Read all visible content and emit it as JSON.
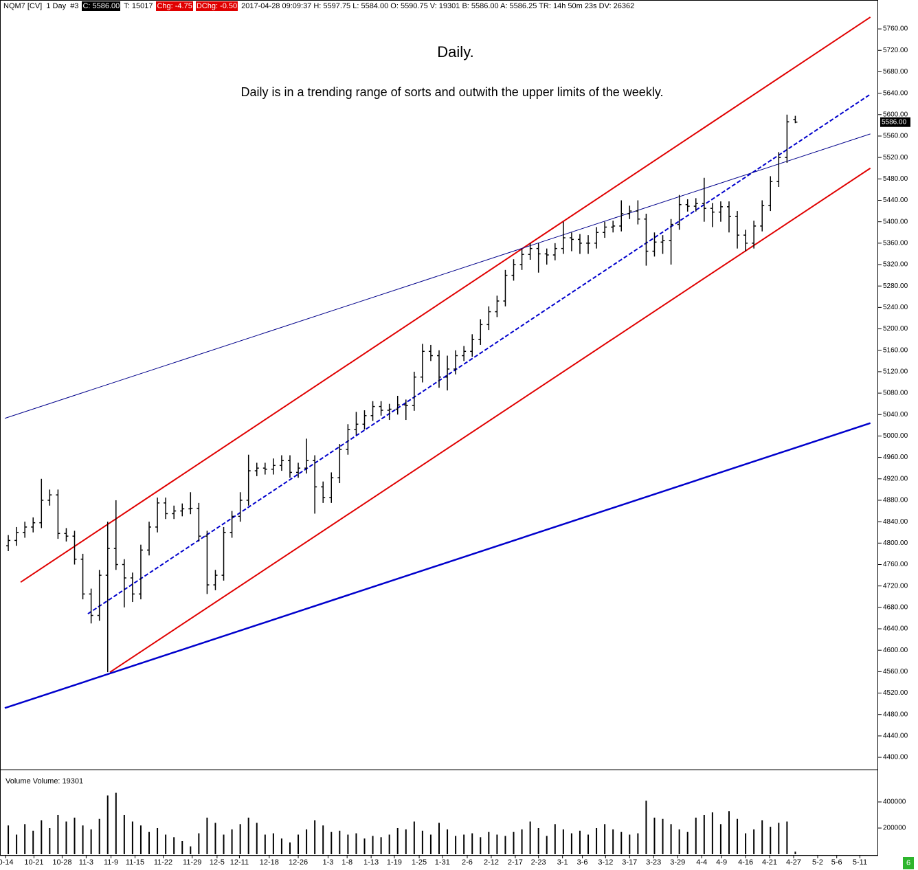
{
  "chart_data": {
    "type": "ohlc",
    "header": [
      {
        "text": "NQM7 [CV]  1 Day  #3"
      },
      {
        "text": "C: 5586.00",
        "bg": "#000000",
        "fg": "#ffffff"
      },
      {
        "text": "T: 15017"
      },
      {
        "text": "Chg: -4.75",
        "bg": "#e00000",
        "fg": "#ffffff"
      },
      {
        "text": "DChg: -0.50",
        "bg": "#e00000",
        "fg": "#ffffff"
      },
      {
        "text": "2017-04-28 09:09:37 H: 5597.75 L: 5584.00 O: 5590.75 V: 19301 B: 5586.00 A: 5586.25 TR: 14h 50m 23s DV: 26362"
      }
    ],
    "title": "Daily.",
    "subtitle": "Daily is in a trending range of sorts and outwith the upper limits of the weekly.",
    "color": "#000000",
    "open": [
      4795,
      4805,
      4820,
      4830,
      4838,
      4880,
      4890,
      4818,
      4813,
      4770,
      4705,
      4665,
      4740,
      4790,
      4760,
      4735,
      4705,
      4787,
      4830,
      4875,
      4855,
      4860,
      4864,
      4865,
      4813,
      4722,
      4740,
      4820,
      4850,
      4880,
      4935,
      4940,
      4938,
      4945,
      4954,
      4932,
      4940,
      4954,
      4905,
      4885,
      4922,
      4975,
      5012,
      5022,
      5038,
      5055,
      5048,
      5050,
      5058,
      5057,
      5110,
      5158,
      5150,
      5110,
      5125,
      5150,
      5158,
      5180,
      5208,
      5232,
      5252,
      5300,
      5320,
      5339,
      5350,
      5340,
      5338,
      5350,
      5370,
      5367,
      5360,
      5360,
      5380,
      5390,
      5392,
      5415,
      5420,
      5405,
      5345,
      5362,
      5365,
      5395,
      5432,
      5429,
      5434,
      5425,
      5418,
      5428,
      5410,
      5375,
      5360,
      5392,
      5430,
      5475,
      5520,
      5590.75
    ],
    "high": [
      4815,
      4830,
      4840,
      4848,
      4920,
      4900,
      4900,
      4828,
      4823,
      4780,
      4715,
      4750,
      4840,
      4880,
      4770,
      4745,
      4797,
      4840,
      4885,
      4885,
      4870,
      4874,
      4895,
      4875,
      4823,
      4750,
      4830,
      4860,
      4895,
      4965,
      4950,
      4950,
      4958,
      4964,
      4964,
      4950,
      4995,
      4964,
      4915,
      4932,
      4985,
      5022,
      5045,
      5048,
      5065,
      5065,
      5060,
      5075,
      5068,
      5120,
      5172,
      5170,
      5160,
      5150,
      5160,
      5168,
      5190,
      5218,
      5242,
      5262,
      5310,
      5330,
      5349,
      5360,
      5360,
      5350,
      5360,
      5400,
      5380,
      5377,
      5375,
      5390,
      5400,
      5402,
      5440,
      5430,
      5440,
      5415,
      5380,
      5375,
      5405,
      5450,
      5442,
      5444,
      5482,
      5435,
      5438,
      5438,
      5420,
      5385,
      5402,
      5440,
      5485,
      5530,
      5600,
      5597.75
    ],
    "low": [
      4785,
      4795,
      4810,
      4820,
      4828,
      4870,
      4808,
      4803,
      4760,
      4695,
      4650,
      4655,
      4559,
      4750,
      4680,
      4690,
      4695,
      4777,
      4820,
      4845,
      4845,
      4850,
      4854,
      4803,
      4705,
      4712,
      4730,
      4810,
      4840,
      4870,
      4925,
      4928,
      4928,
      4935,
      4922,
      4922,
      4930,
      4855,
      4875,
      4875,
      4912,
      4965,
      5002,
      5012,
      5028,
      5038,
      5030,
      5040,
      5030,
      5047,
      5100,
      5140,
      5090,
      5085,
      5115,
      5140,
      5148,
      5170,
      5198,
      5222,
      5242,
      5290,
      5310,
      5329,
      5305,
      5320,
      5328,
      5340,
      5345,
      5340,
      5340,
      5350,
      5370,
      5380,
      5382,
      5405,
      5395,
      5318,
      5335,
      5340,
      5320,
      5385,
      5419,
      5419,
      5400,
      5390,
      5400,
      5380,
      5350,
      5345,
      5350,
      5382,
      5420,
      5465,
      5510,
      5584
    ],
    "close": [
      4805,
      4820,
      4830,
      4838,
      4880,
      4890,
      4818,
      4813,
      4770,
      4705,
      4665,
      4740,
      4790,
      4760,
      4735,
      4705,
      4787,
      4830,
      4875,
      4855,
      4860,
      4864,
      4865,
      4813,
      4722,
      4740,
      4820,
      4850,
      4880,
      4935,
      4940,
      4938,
      4945,
      4954,
      4932,
      4940,
      4954,
      4905,
      4885,
      4922,
      4975,
      5012,
      5022,
      5038,
      5055,
      5048,
      5050,
      5058,
      5057,
      5110,
      5158,
      5150,
      5110,
      5125,
      5150,
      5158,
      5180,
      5208,
      5232,
      5252,
      5300,
      5320,
      5339,
      5350,
      5340,
      5338,
      5350,
      5370,
      5367,
      5360,
      5360,
      5380,
      5390,
      5392,
      5415,
      5420,
      5405,
      5345,
      5362,
      5365,
      5395,
      5432,
      5429,
      5434,
      5425,
      5418,
      5428,
      5410,
      5375,
      5360,
      5392,
      5430,
      5475,
      5520,
      5586.5,
      5586
    ],
    "last_price": 5586,
    "last_price_label": "5586.00",
    "xlim": [
      -1,
      105
    ],
    "xticks": [
      {
        "value": -0.3,
        "label": "0-14"
      },
      {
        "value": 3.1,
        "label": "10-21"
      },
      {
        "value": 6.5,
        "label": "10-28"
      },
      {
        "value": 9.4,
        "label": "11-3"
      },
      {
        "value": 12.4,
        "label": "11-9"
      },
      {
        "value": 15.3,
        "label": "11-15"
      },
      {
        "value": 18.7,
        "label": "11-22"
      },
      {
        "value": 22.2,
        "label": "11-29"
      },
      {
        "value": 25.2,
        "label": "12-5"
      },
      {
        "value": 27.9,
        "label": "12-11"
      },
      {
        "value": 31.5,
        "label": "12-18"
      },
      {
        "value": 35.0,
        "label": "12-26"
      },
      {
        "value": 38.6,
        "label": "1-3"
      },
      {
        "value": 40.9,
        "label": "1-8"
      },
      {
        "value": 43.8,
        "label": "1-13"
      },
      {
        "value": 46.6,
        "label": "1-19"
      },
      {
        "value": 49.6,
        "label": "1-25"
      },
      {
        "value": 52.4,
        "label": "1-31"
      },
      {
        "value": 55.4,
        "label": "2-6"
      },
      {
        "value": 58.3,
        "label": "2-12"
      },
      {
        "value": 61.2,
        "label": "2-17"
      },
      {
        "value": 64.0,
        "label": "2-23"
      },
      {
        "value": 66.9,
        "label": "3-1"
      },
      {
        "value": 69.3,
        "label": "3-6"
      },
      {
        "value": 72.1,
        "label": "3-12"
      },
      {
        "value": 75.0,
        "label": "3-17"
      },
      {
        "value": 77.9,
        "label": "3-23"
      },
      {
        "value": 80.8,
        "label": "3-29"
      },
      {
        "value": 83.7,
        "label": "4-4"
      },
      {
        "value": 86.1,
        "label": "4-9"
      },
      {
        "value": 89.0,
        "label": "4-16"
      },
      {
        "value": 91.9,
        "label": "4-21"
      },
      {
        "value": 94.8,
        "label": "4-27"
      },
      {
        "value": 97.7,
        "label": "5-2"
      },
      {
        "value": 100.0,
        "label": "5-6"
      },
      {
        "value": 102.8,
        "label": "5-11"
      }
    ],
    "ylim": [
      4377,
      5814
    ],
    "yticks": [
      {
        "value": 4400,
        "label": "4400.00"
      },
      {
        "value": 4440,
        "label": "4440.00"
      },
      {
        "value": 4480,
        "label": "4480.00"
      },
      {
        "value": 4520,
        "label": "4520.00"
      },
      {
        "value": 4560,
        "label": "4560.00"
      },
      {
        "value": 4600,
        "label": "4600.00"
      },
      {
        "value": 4640,
        "label": "4640.00"
      },
      {
        "value": 4680,
        "label": "4680.00"
      },
      {
        "value": 4720,
        "label": "4720.00"
      },
      {
        "value": 4760,
        "label": "4760.00"
      },
      {
        "value": 4800,
        "label": "4800.00"
      },
      {
        "value": 4840,
        "label": "4840.00"
      },
      {
        "value": 4880,
        "label": "4880.00"
      },
      {
        "value": 4920,
        "label": "4920.00"
      },
      {
        "value": 4960,
        "label": "4960.00"
      },
      {
        "value": 5000,
        "label": "5000.00"
      },
      {
        "value": 5040,
        "label": "5040.00"
      },
      {
        "value": 5080,
        "label": "5080.00"
      },
      {
        "value": 5120,
        "label": "5120.00"
      },
      {
        "value": 5160,
        "label": "5160.00"
      },
      {
        "value": 5200,
        "label": "5200.00"
      },
      {
        "value": 5240,
        "label": "5240.00"
      },
      {
        "value": 5280,
        "label": "5280.00"
      },
      {
        "value": 5320,
        "label": "5320.00"
      },
      {
        "value": 5360,
        "label": "5360.00"
      },
      {
        "value": 5400,
        "label": "5400.00"
      },
      {
        "value": 5440,
        "label": "5440.00"
      },
      {
        "value": 5480,
        "label": "5480.00"
      },
      {
        "value": 5520,
        "label": "5520.00"
      },
      {
        "value": 5560,
        "label": "5560.00"
      },
      {
        "value": 5600,
        "label": "5600.00"
      },
      {
        "value": 5640,
        "label": "5640.00"
      },
      {
        "value": 5680,
        "label": "5680.00"
      },
      {
        "value": 5720,
        "label": "5720.00"
      },
      {
        "value": 5760,
        "label": "5760.00"
      }
    ],
    "trendlines": [
      {
        "color": "#e00000",
        "width": 2,
        "x": [
          1.49,
          104.06
        ],
        "y": [
          4727,
          5782
        ]
      },
      {
        "color": "#e00000",
        "width": 2,
        "x": [
          12.27,
          104.06
        ],
        "y": [
          4559,
          5500
        ]
      },
      {
        "color": "#0000cc",
        "width": 2,
        "dash": "6,3",
        "x": [
          9.61,
          104.06
        ],
        "y": [
          4668,
          5638
        ]
      },
      {
        "color": "#00008b",
        "width": 1,
        "x": [
          -0.42,
          104.06
        ],
        "y": [
          5033,
          5564
        ]
      },
      {
        "color": "#0000cc",
        "width": 2.5,
        "x": [
          -0.42,
          104.06
        ],
        "y": [
          4492,
          5024
        ]
      }
    ],
    "volume": {
      "title": "Volume  Volume: 19301",
      "color": "#000000",
      "ylim": [
        0,
        605000
      ],
      "yticks": [
        200000,
        400000
      ],
      "values": [
        220000,
        150000,
        230000,
        180000,
        260000,
        200000,
        300000,
        250000,
        280000,
        220000,
        190000,
        270000,
        450000,
        470000,
        300000,
        250000,
        220000,
        170000,
        200000,
        150000,
        130000,
        100000,
        60000,
        160000,
        280000,
        240000,
        150000,
        190000,
        230000,
        280000,
        240000,
        150000,
        160000,
        120000,
        90000,
        150000,
        190000,
        260000,
        220000,
        170000,
        180000,
        150000,
        160000,
        120000,
        140000,
        130000,
        150000,
        200000,
        190000,
        250000,
        180000,
        150000,
        240000,
        190000,
        140000,
        150000,
        160000,
        130000,
        170000,
        150000,
        140000,
        170000,
        190000,
        250000,
        200000,
        140000,
        230000,
        190000,
        160000,
        180000,
        150000,
        200000,
        230000,
        190000,
        170000,
        150000,
        160000,
        410000,
        280000,
        270000,
        230000,
        190000,
        170000,
        280000,
        300000,
        320000,
        230000,
        330000,
        270000,
        160000,
        190000,
        260000,
        210000,
        240000,
        250000,
        19301
      ]
    },
    "badge": "6"
  }
}
